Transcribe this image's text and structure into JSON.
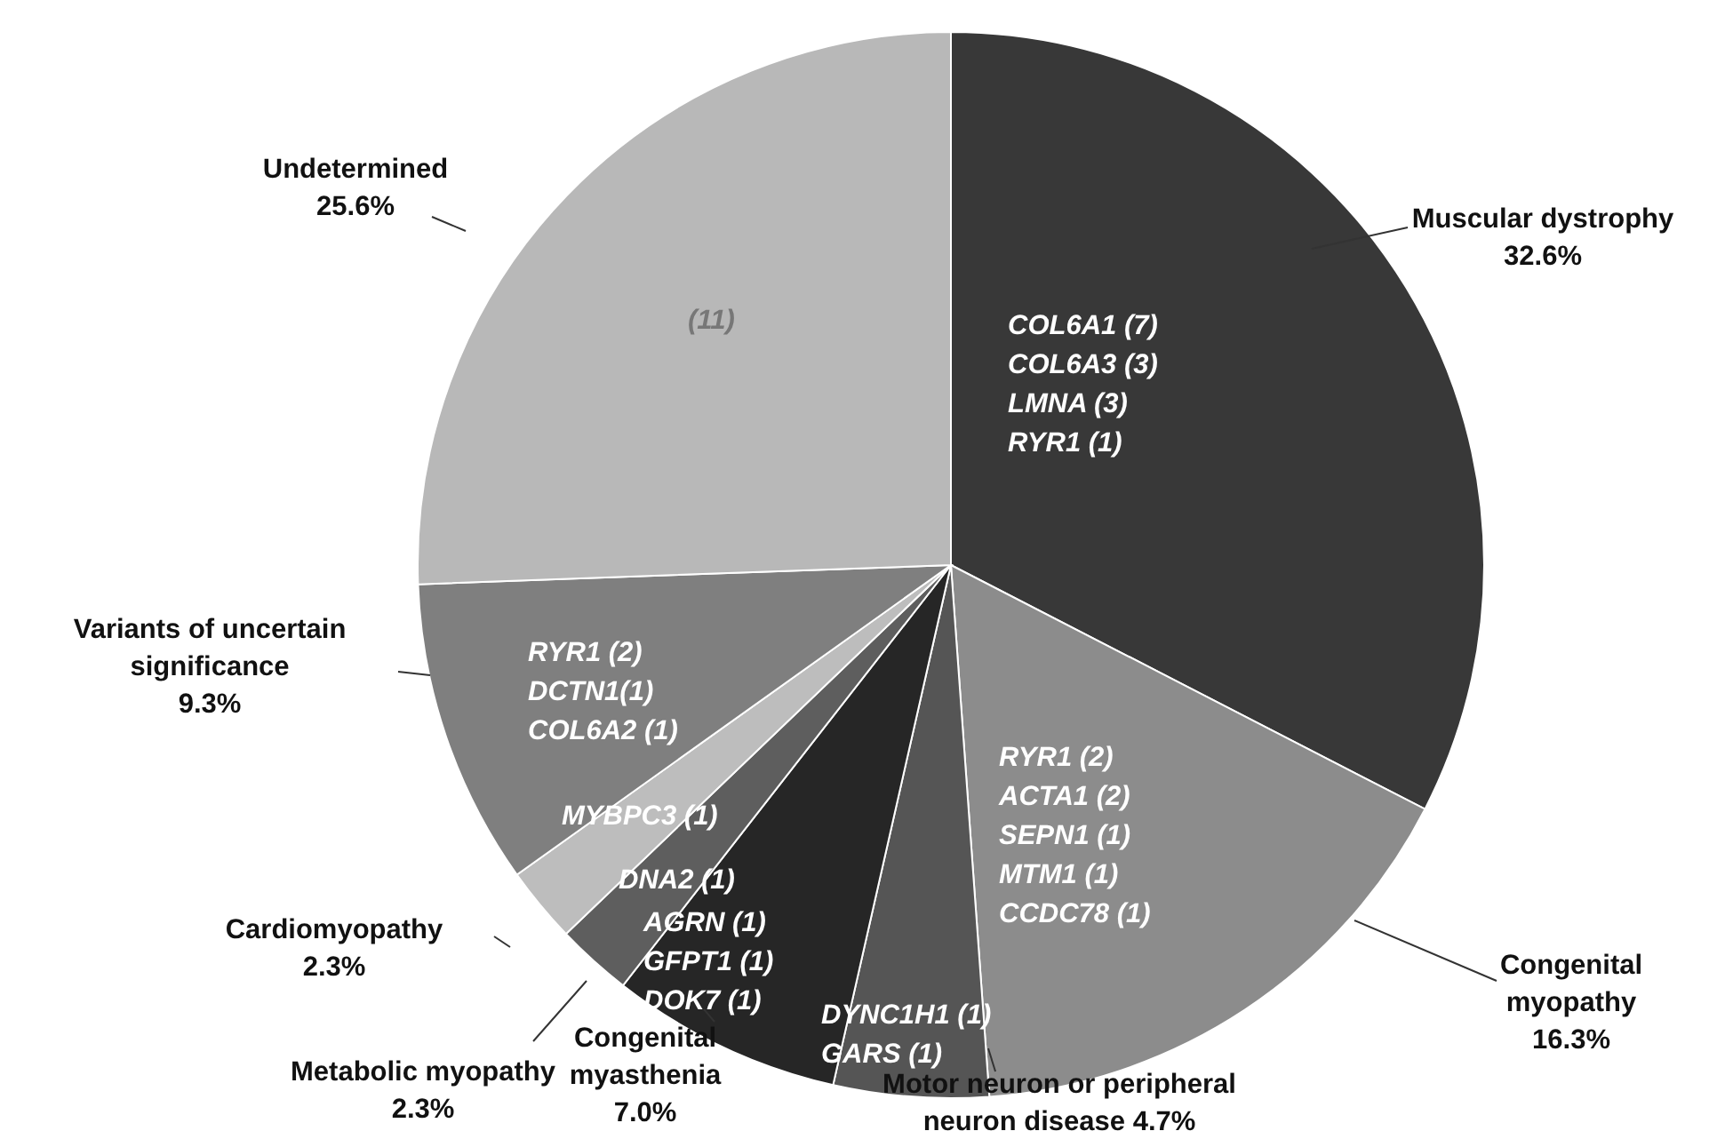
{
  "chart_data": {
    "type": "pie",
    "categories": [
      "Muscular  dystrophy",
      "Congenital myopathy",
      "Motor neuron or peripheral neuron disease",
      "Congenital myasthenia",
      "Metabolic myopathy",
      "Cardiomyopathy",
      "Variants of uncertain significance",
      "Undetermined"
    ],
    "values": [
      32.6,
      16.3,
      4.7,
      7.0,
      2.3,
      2.3,
      9.3,
      25.6
    ],
    "value_labels": [
      "32.6%",
      "16.3%",
      "4.7%",
      "7.0%",
      "2.3%",
      "2.3%",
      "9.3%",
      "25.6%"
    ],
    "colors": [
      "#383838",
      "#8c8c8c",
      "#555555",
      "#262626",
      "#5e5e5e",
      "#bdbdbd",
      "#7f7f7f",
      "#b8b8b8"
    ],
    "annotations": [
      "COL6A1  (7)\nCOL6A3 (3)\nLMNA (3)\nRYR1 (1)",
      "RYR1 (2)\nACTA1 (2)\nSEPN1 (1)\nMTM1 (1)\nCCDC78 (1)",
      "DYNC1H1 (1)\nGARS (1)",
      "AGRN (1)\nGFPT1 (1)\nDOK7 (1)",
      "DNA2 (1)",
      "MYBPC3 (1)",
      "RYR1 (2)\nDCTN1(1)\nCOL6A2 (1)",
      "(11)"
    ]
  }
}
